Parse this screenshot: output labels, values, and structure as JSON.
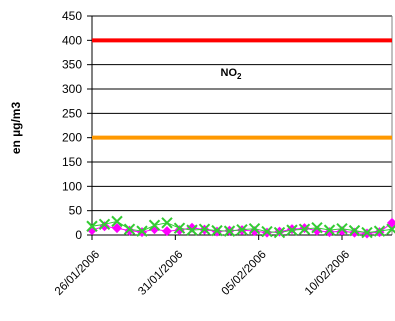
{
  "chart_data": {
    "type": "line",
    "ylabel": "en µg/m3",
    "annotation": {
      "main": "NO",
      "sub": "2"
    },
    "ylim": [
      0,
      450
    ],
    "yticks": [
      0,
      50,
      100,
      150,
      200,
      250,
      300,
      350,
      400,
      450
    ],
    "xlim_days": 18,
    "x_tick_labels": [
      "26/01/2006",
      "31/01/2006",
      "05/02/2006",
      "10/02/2006"
    ],
    "x_tick_days": [
      0,
      5,
      10,
      15
    ],
    "grid": true,
    "colors": {
      "plot_background": "#ffffff",
      "gridline": "#000000",
      "border": "#808080",
      "threshold_high": "#ff0000",
      "threshold_low": "#ff9900",
      "series_a": "#ff00ff",
      "series_b": "#33cc33"
    },
    "thresholds": [
      {
        "value": 400,
        "color": "#ff0000"
      },
      {
        "value": 200,
        "color": "#ff9900"
      }
    ],
    "series": [
      {
        "marker": "diamond",
        "color": "#ff00ff",
        "x": [
          0,
          0.75,
          1.5,
          2.25,
          3,
          3.75,
          4.5,
          5.25,
          6,
          6.75,
          7.5,
          8.25,
          9,
          9.75,
          10.5,
          11.25,
          12,
          12.75,
          13.5,
          14.25,
          15,
          15.75,
          16.5,
          17.25,
          18
        ],
        "y": [
          10,
          18,
          14,
          9,
          6,
          12,
          8,
          10,
          15,
          11,
          7,
          9,
          10,
          8,
          5,
          7,
          12,
          14,
          9,
          6,
          8,
          5,
          3,
          6,
          25
        ]
      },
      {
        "marker": "x",
        "color": "#33cc33",
        "x": [
          0,
          0.75,
          1.5,
          2.25,
          3,
          3.75,
          4.5,
          5.25,
          6,
          6.75,
          7.5,
          8.25,
          9,
          9.75,
          10.5,
          11.25,
          12,
          12.75,
          13.5,
          14.25,
          15,
          15.75,
          16.5,
          17.25,
          18
        ],
        "y": [
          18,
          22,
          28,
          12,
          8,
          20,
          25,
          14,
          10,
          12,
          9,
          8,
          11,
          13,
          7,
          5,
          10,
          12,
          15,
          10,
          13,
          9,
          5,
          8,
          12
        ]
      }
    ]
  }
}
